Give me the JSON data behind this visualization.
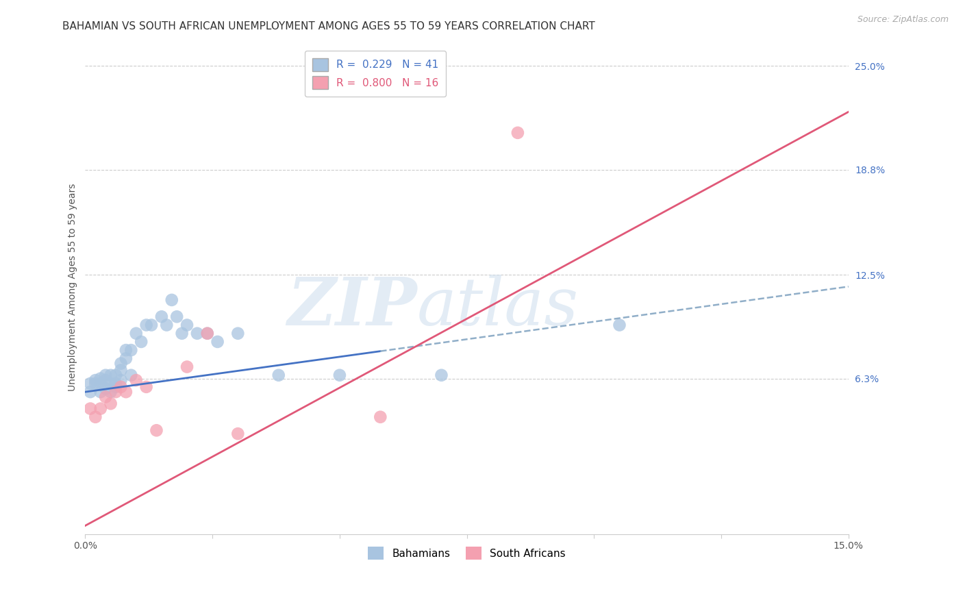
{
  "title": "BAHAMIAN VS SOUTH AFRICAN UNEMPLOYMENT AMONG AGES 55 TO 59 YEARS CORRELATION CHART",
  "source": "Source: ZipAtlas.com",
  "xlabel": "",
  "ylabel": "Unemployment Among Ages 55 to 59 years",
  "xlim": [
    0.0,
    0.15
  ],
  "ylim": [
    -0.03,
    0.265
  ],
  "yticks": [
    0.063,
    0.125,
    0.188,
    0.25
  ],
  "ytick_labels": [
    "6.3%",
    "12.5%",
    "18.8%",
    "25.0%"
  ],
  "xticks": [
    0.0,
    0.025,
    0.05,
    0.075,
    0.1,
    0.125,
    0.15
  ],
  "xtick_labels": [
    "0.0%",
    "",
    "",
    "",
    "",
    "",
    "15.0%"
  ],
  "background_color": "#ffffff",
  "grid_color": "#cccccc",
  "bahamian_color": "#a8c4e0",
  "sa_color": "#f4a0b0",
  "bahamian_line_color": "#4472c4",
  "sa_line_color": "#e05878",
  "dashed_line_color": "#90aec8",
  "R_bahamian": 0.229,
  "N_bahamian": 41,
  "R_sa": 0.8,
  "N_sa": 16,
  "bahamian_x": [
    0.001,
    0.001,
    0.002,
    0.002,
    0.003,
    0.003,
    0.003,
    0.004,
    0.004,
    0.004,
    0.005,
    0.005,
    0.005,
    0.006,
    0.006,
    0.006,
    0.007,
    0.007,
    0.007,
    0.008,
    0.008,
    0.009,
    0.009,
    0.01,
    0.011,
    0.012,
    0.013,
    0.015,
    0.016,
    0.017,
    0.018,
    0.019,
    0.02,
    0.022,
    0.024,
    0.026,
    0.03,
    0.038,
    0.05,
    0.07,
    0.105
  ],
  "bahamian_y": [
    0.06,
    0.055,
    0.06,
    0.062,
    0.055,
    0.06,
    0.063,
    0.057,
    0.062,
    0.065,
    0.055,
    0.06,
    0.065,
    0.058,
    0.06,
    0.065,
    0.062,
    0.068,
    0.072,
    0.075,
    0.08,
    0.065,
    0.08,
    0.09,
    0.085,
    0.095,
    0.095,
    0.1,
    0.095,
    0.11,
    0.1,
    0.09,
    0.095,
    0.09,
    0.09,
    0.085,
    0.09,
    0.065,
    0.065,
    0.065,
    0.095
  ],
  "sa_x": [
    0.001,
    0.002,
    0.003,
    0.004,
    0.005,
    0.006,
    0.007,
    0.008,
    0.01,
    0.012,
    0.014,
    0.02,
    0.024,
    0.03,
    0.058,
    0.085
  ],
  "sa_y": [
    0.045,
    0.04,
    0.045,
    0.052,
    0.048,
    0.055,
    0.058,
    0.055,
    0.062,
    0.058,
    0.032,
    0.07,
    0.09,
    0.03,
    0.04,
    0.21
  ],
  "legend_label_bahamian": "Bahamians",
  "legend_label_sa": "South Africans",
  "title_fontsize": 11,
  "axis_label_fontsize": 10,
  "tick_fontsize": 10,
  "legend_fontsize": 11,
  "blue_line_solid_end": 0.058,
  "blue_line_dashed_end": 0.15,
  "sa_line_x_start": 0.0,
  "sa_line_x_end": 0.15,
  "sa_intercept": -0.025,
  "sa_slope": 1.65,
  "blue_intercept": 0.055,
  "blue_slope": 0.42
}
